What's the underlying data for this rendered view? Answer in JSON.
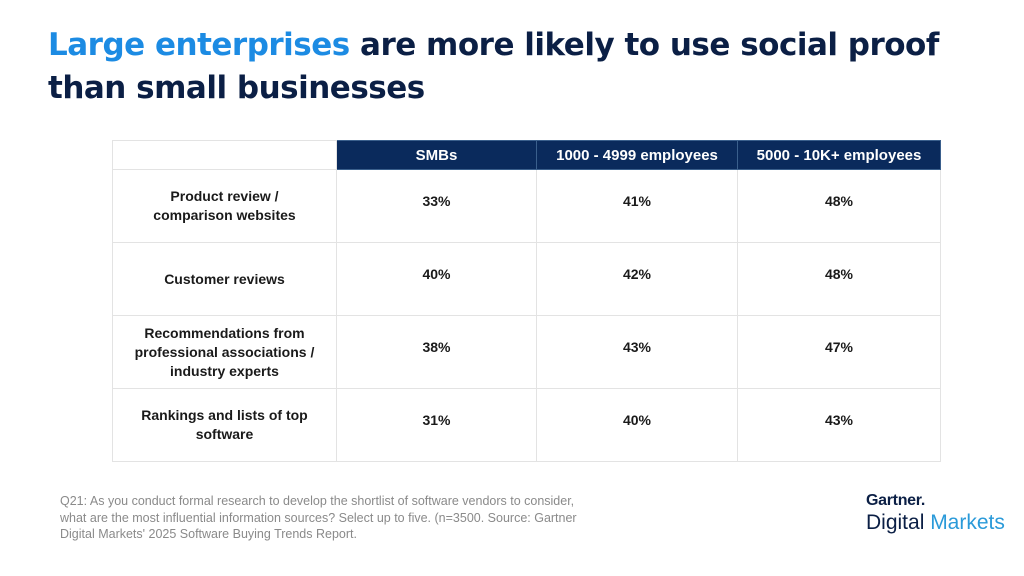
{
  "title": {
    "accent": "Large enterprises",
    "rest": " are more likely to use social proof than small businesses"
  },
  "chart_data": {
    "type": "table",
    "columns": [
      "SMBs",
      "1000 - 4999 employees",
      "5000 - 10K+ employees"
    ],
    "rows": [
      {
        "label": "Product review / comparison websites",
        "values": [
          "33%",
          "41%",
          "48%"
        ]
      },
      {
        "label": "Customer reviews",
        "values": [
          "40%",
          "42%",
          "48%"
        ]
      },
      {
        "label": "Recommendations from professional associations / industry experts",
        "values": [
          "38%",
          "43%",
          "47%"
        ]
      },
      {
        "label": "Rankings and lists of top software",
        "values": [
          "31%",
          "40%",
          "43%"
        ]
      }
    ]
  },
  "footnote": "Q21: As you conduct formal research to develop the shortlist of software vendors to consider, what are the most influential information sources? Select up to five. (n=3500. Source: Gartner Digital Markets' 2025 Software Buying Trends Report.",
  "logo": {
    "top": "Gartner.",
    "bottom_a": "Digital",
    "bottom_b": " Markets"
  },
  "colors": {
    "accent": "#1c8be3",
    "navy": "#0a2a5c"
  }
}
